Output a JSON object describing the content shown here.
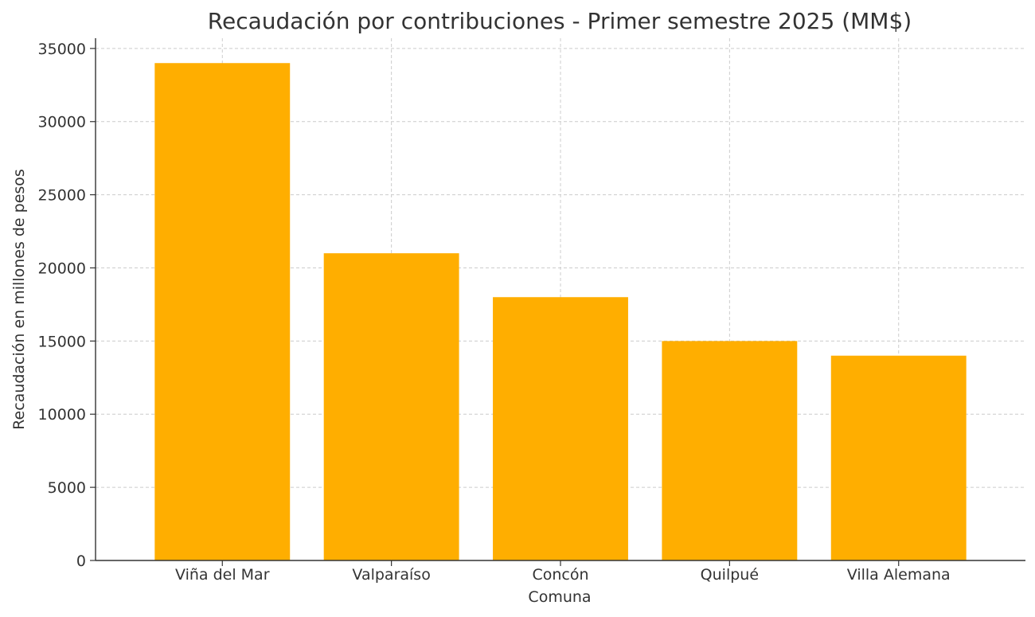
{
  "chart_data": {
    "type": "bar",
    "title": "Recaudación por contribuciones - Primer semestre 2025 (MM$)",
    "xlabel": "Comuna",
    "ylabel": "Recaudación en millones de pesos",
    "categories": [
      "Viña del Mar",
      "Valparaíso",
      "Concón",
      "Quilpué",
      "Villa Alemana"
    ],
    "values": [
      34000,
      21000,
      18000,
      15000,
      14000
    ],
    "ylim": [
      0,
      35700
    ],
    "yticks": [
      0,
      5000,
      10000,
      15000,
      20000,
      25000,
      30000,
      35000
    ],
    "grid": true,
    "bar_color": "#FFAE00"
  }
}
